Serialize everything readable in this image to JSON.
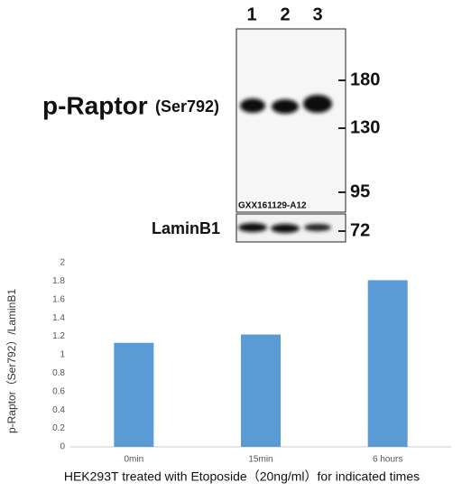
{
  "blot": {
    "lanes": [
      "1",
      "2",
      "3"
    ],
    "target": "p-Raptor",
    "site": "(Ser792)",
    "markers": [
      "180",
      "130",
      "95",
      "72"
    ],
    "antibody_id": "GXX161129-A12",
    "loading_control": "LaminB1"
  },
  "chart_data": {
    "type": "bar",
    "categories": [
      "0min",
      "15min",
      "6 hours"
    ],
    "values": [
      1.13,
      1.22,
      1.81
    ],
    "color": "#5b9bd5",
    "ylim": [
      0,
      2
    ],
    "yticks": [
      0,
      0.2,
      0.4,
      0.6,
      0.8,
      1,
      1.2,
      1.4,
      1.6,
      1.8,
      2
    ],
    "ylabel": "p-Raptor（Ser792）/LaminB1",
    "xlabel": "HEK293T treated with Etoposide（20ng/ml）for indicated times",
    "grid": false
  }
}
